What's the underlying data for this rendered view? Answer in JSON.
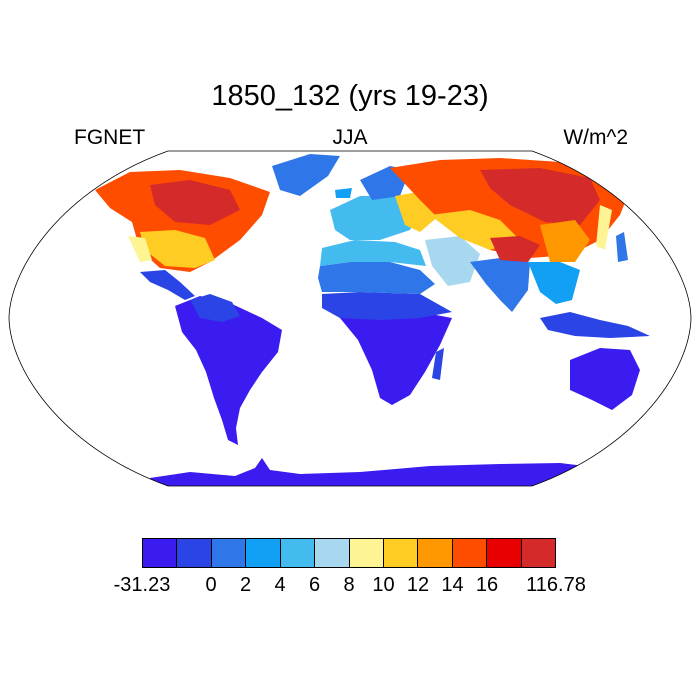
{
  "title": "1850_132 (yrs 19-23)",
  "subtitle": {
    "left": "FGNET",
    "center": "JJA",
    "right": "W/m^2"
  },
  "legend": {
    "labels": [
      "-31.23",
      "0",
      "2",
      "4",
      "6",
      "8",
      "10",
      "12",
      "14",
      "16",
      "116.78"
    ],
    "colors": [
      "#3a1cf0",
      "#2a44e6",
      "#2f76e8",
      "#12a0f5",
      "#44bbef",
      "#a8d8f0",
      "#fff494",
      "#ffcc24",
      "#ff9800",
      "#ff4d00",
      "#e80000",
      "#d42a2a"
    ]
  },
  "map": {
    "projection": "Robinson",
    "boundary_color": "#000000",
    "ocean_color": "#ffffff"
  }
}
